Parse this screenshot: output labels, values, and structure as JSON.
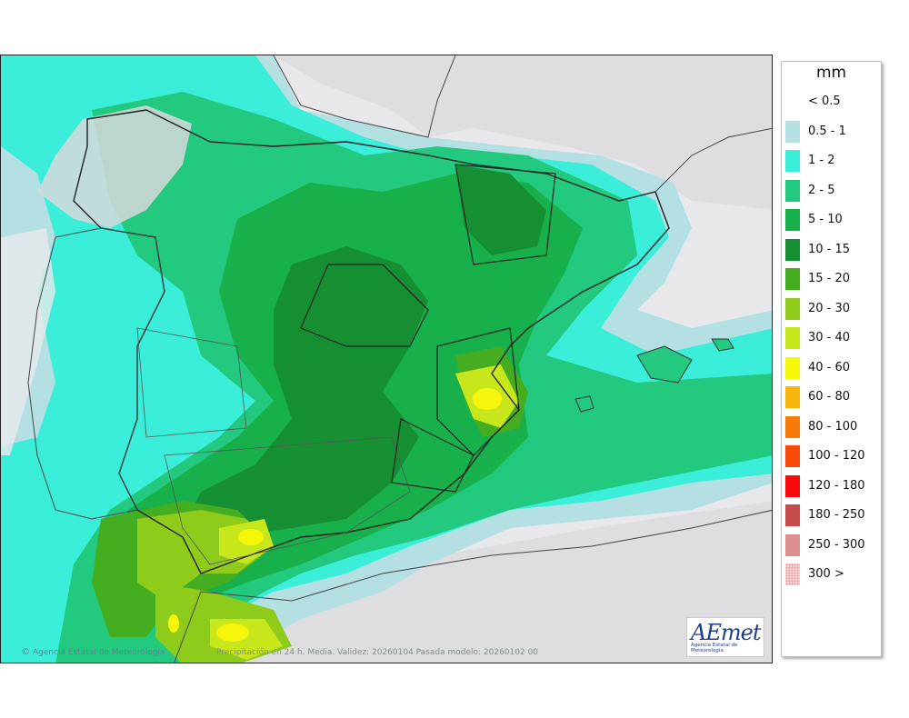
{
  "map": {
    "region": "Iberian Peninsula and Balearic Islands",
    "credit": "Agencia Estatal de Meteorología",
    "caption": "Precipitación en 24 h. Media. Validez: 20260104 Pasada modelo: 20260102 00",
    "logo": {
      "brand": "AEmet",
      "subtitle": "Agencia Estatal de Meteorología"
    }
  },
  "legend": {
    "unit": "mm",
    "items": [
      {
        "label": "< 0.5",
        "color": "#ffffff"
      },
      {
        "label": "0.5 - 1",
        "color": "#b4dfe3"
      },
      {
        "label": "1 - 2",
        "color": "#3aeed9"
      },
      {
        "label": "2 - 5",
        "color": "#22c97e"
      },
      {
        "label": "5 - 10",
        "color": "#18b04a"
      },
      {
        "label": "10 - 15",
        "color": "#168f33"
      },
      {
        "label": "15 - 20",
        "color": "#45ad20"
      },
      {
        "label": "20 - 30",
        "color": "#8ecb1a"
      },
      {
        "label": "30 - 40",
        "color": "#c7e61c"
      },
      {
        "label": "40 - 60",
        "color": "#f6f60a"
      },
      {
        "label": "60 - 80",
        "color": "#f8b60c"
      },
      {
        "label": "80 - 100",
        "color": "#f97a0a"
      },
      {
        "label": "100 - 120",
        "color": "#fa4a0a"
      },
      {
        "label": "120 - 180",
        "color": "#fa0a0a"
      },
      {
        "label": "180 - 250",
        "color": "#c94c4c"
      },
      {
        "label": "250 - 300",
        "color": "#de8f8f"
      },
      {
        "label": "300 >",
        "color": "#f5d2d2"
      }
    ]
  }
}
